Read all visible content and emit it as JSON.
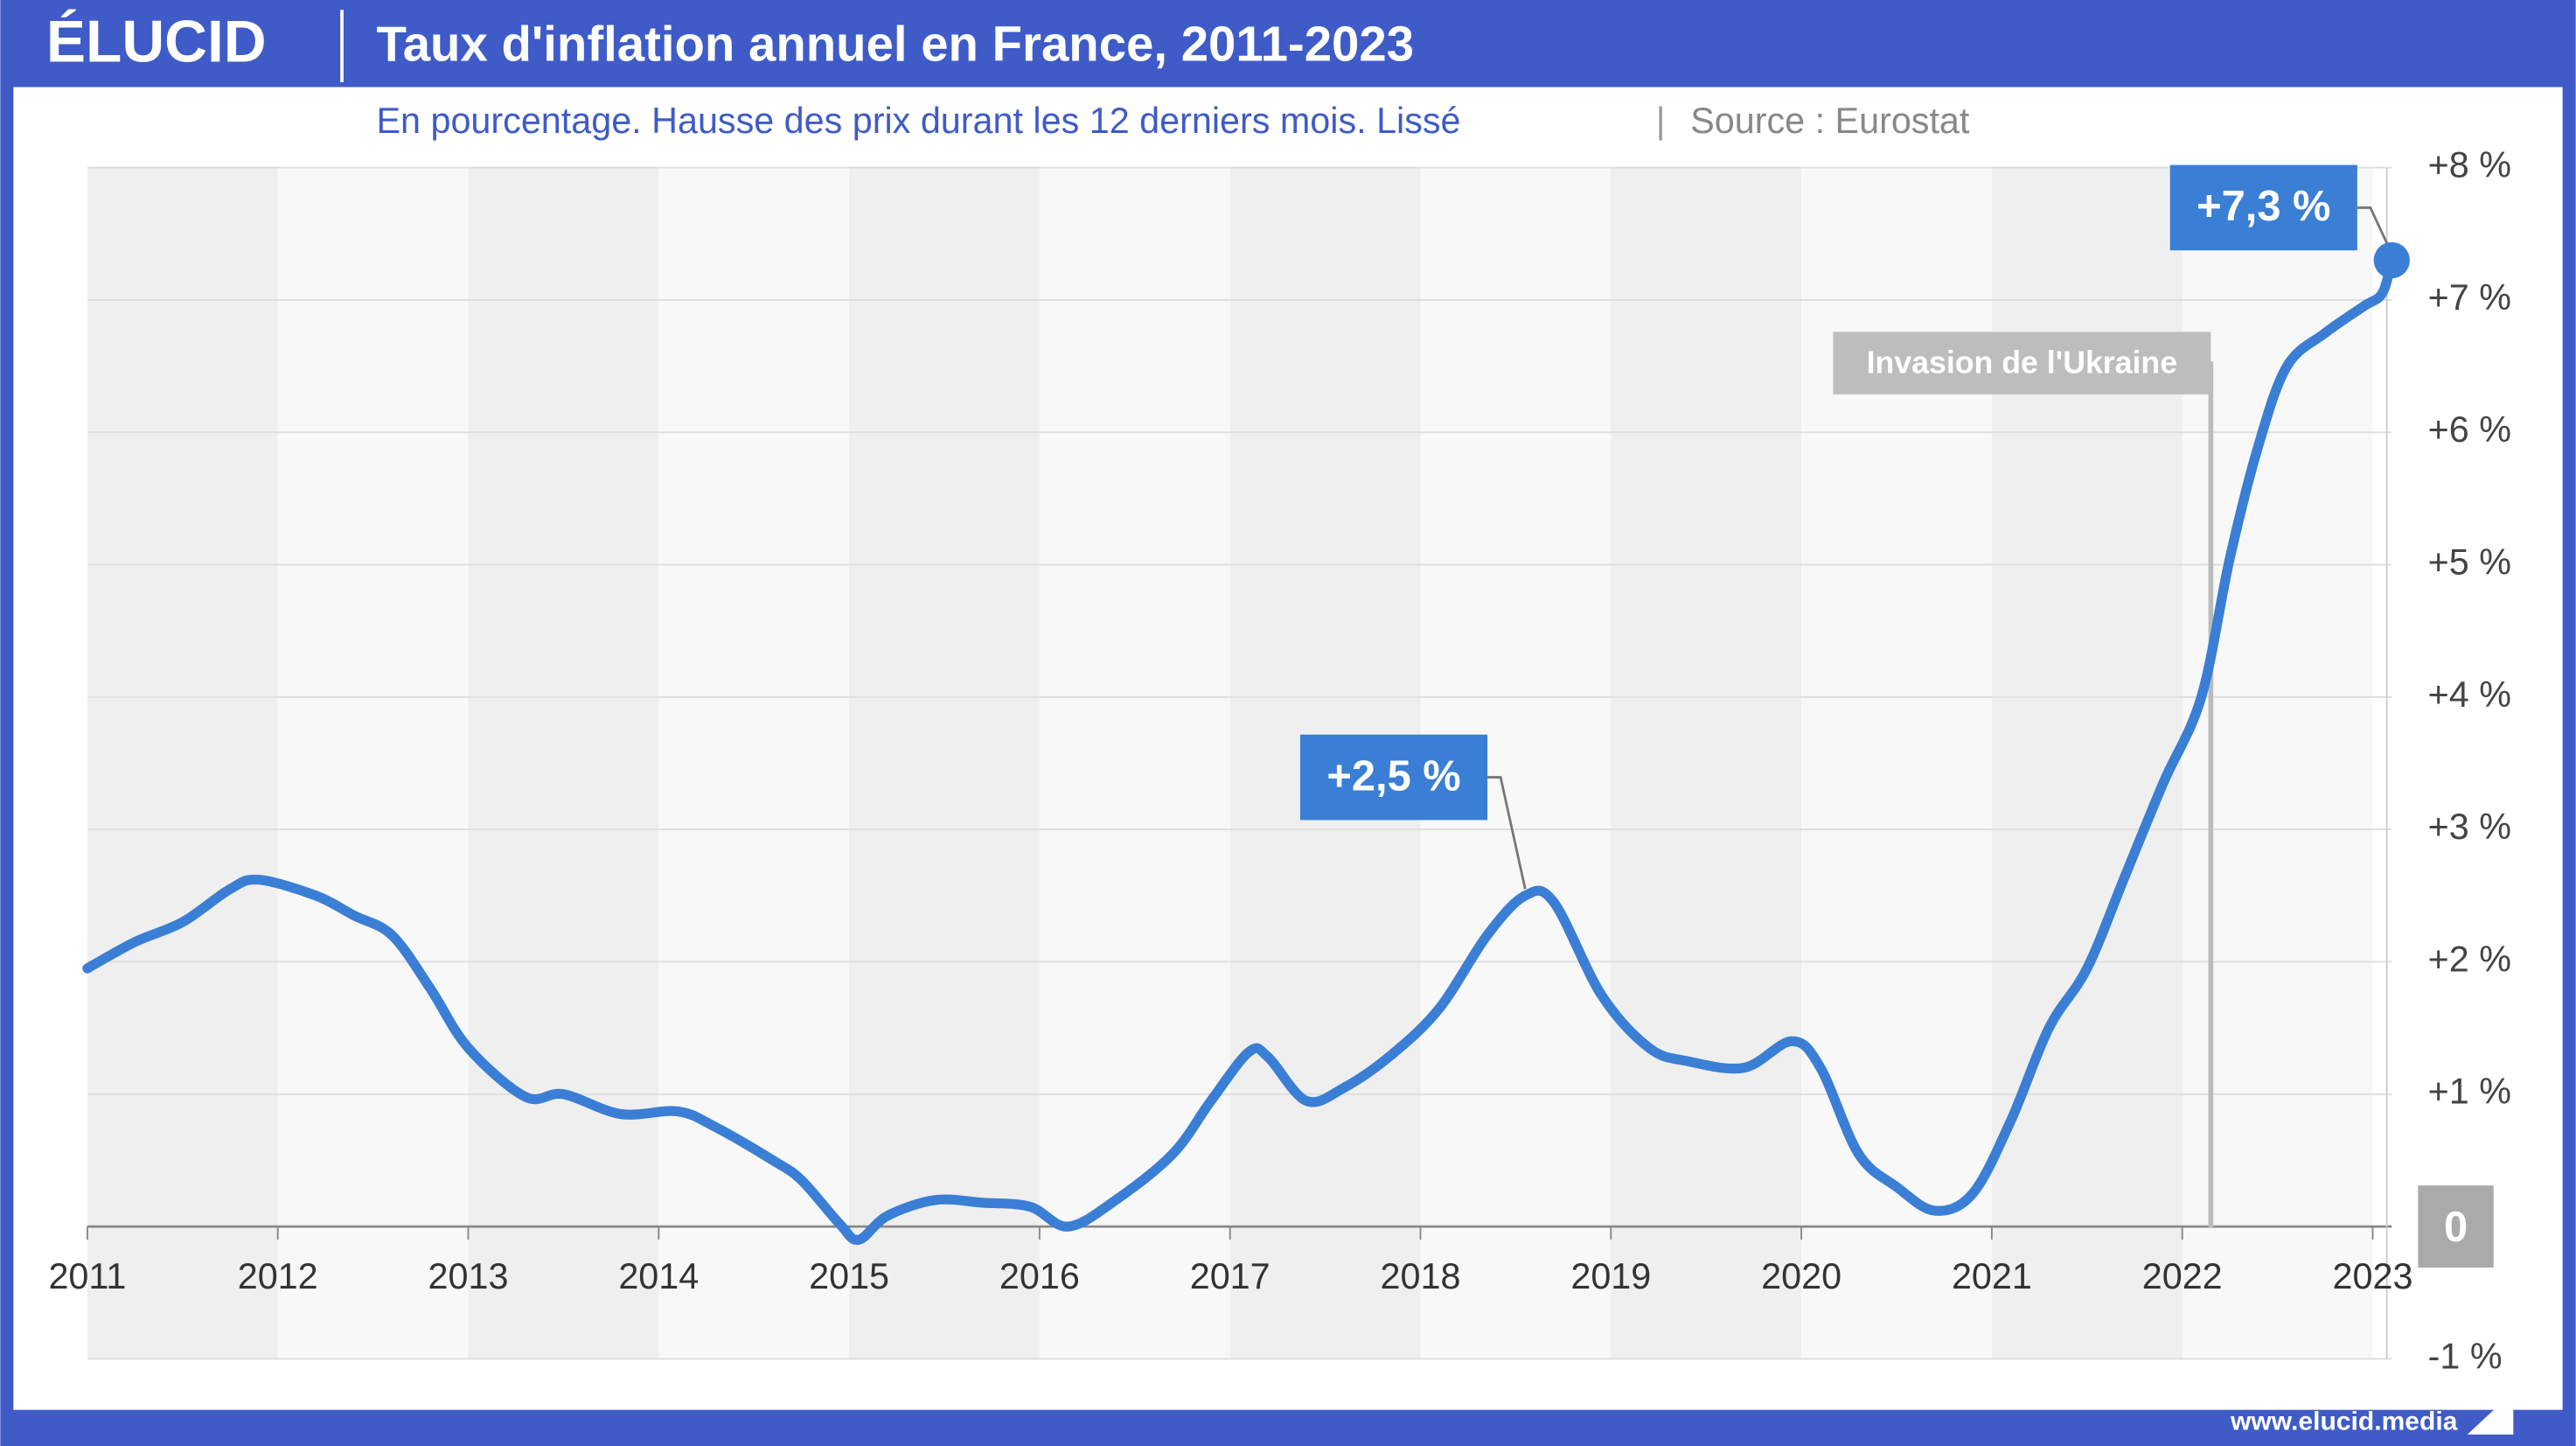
{
  "header": {
    "logo": "ÉLUCID",
    "footer": "www.elucid.media"
  },
  "chart_data": {
    "type": "line",
    "title": "Taux d'inflation annuel en France, 2011-2023",
    "subtitle": "En pourcentage. Hausse des prix durant les 12 derniers mois. Lissé",
    "source": "Source : Eurostat",
    "x": [
      2011,
      2011.25,
      2011.5,
      2011.75,
      2011.9,
      2012.2,
      2012.4,
      2012.6,
      2012.8,
      2013.0,
      2013.3,
      2013.5,
      2013.8,
      2014.1,
      2014.3,
      2014.6,
      2014.75,
      2014.95,
      2015.05,
      2015.2,
      2015.45,
      2015.7,
      2015.95,
      2016.15,
      2016.4,
      2016.7,
      2016.9,
      2017.1,
      2017.2,
      2017.4,
      2017.6,
      2017.85,
      2018.1,
      2018.35,
      2018.55,
      2018.7,
      2018.95,
      2019.2,
      2019.4,
      2019.7,
      2019.95,
      2020.1,
      2020.3,
      2020.5,
      2020.7,
      2020.9,
      2021.1,
      2021.3,
      2021.5,
      2021.7,
      2021.9,
      2022.1,
      2022.25,
      2022.4,
      2022.55,
      2022.75,
      2022.95,
      2023.05,
      2023.1
    ],
    "series": [
      {
        "name": "Inflation",
        "color": "#3a7fd5",
        "values": [
          1.95,
          2.15,
          2.3,
          2.55,
          2.62,
          2.5,
          2.35,
          2.2,
          1.8,
          1.35,
          0.98,
          1.0,
          0.85,
          0.87,
          0.75,
          0.5,
          0.35,
          0.02,
          -0.1,
          0.08,
          0.2,
          0.18,
          0.15,
          0.0,
          0.2,
          0.55,
          0.95,
          1.32,
          1.28,
          0.95,
          1.05,
          1.3,
          1.65,
          2.2,
          2.5,
          2.45,
          1.75,
          1.35,
          1.25,
          1.2,
          1.4,
          1.2,
          0.55,
          0.3,
          0.12,
          0.25,
          0.8,
          1.5,
          1.95,
          2.65,
          3.35,
          4.0,
          5.05,
          5.9,
          6.5,
          6.75,
          6.95,
          7.05,
          7.3
        ],
        "value_labels": [
          null,
          null,
          null,
          null,
          null,
          null,
          null,
          null,
          null,
          null,
          null,
          null,
          null,
          null,
          null,
          null,
          null,
          null,
          null,
          null,
          null,
          null,
          null,
          null,
          null,
          null,
          null,
          null,
          null,
          null,
          null,
          null,
          null,
          null,
          "+2,5 %",
          null,
          null,
          null,
          null,
          null,
          null,
          null,
          null,
          null,
          null,
          null,
          null,
          null,
          null,
          null,
          null,
          null,
          null,
          null,
          null,
          null,
          null,
          null,
          "+7,3 %"
        ]
      }
    ],
    "annotations": [
      {
        "label": "Invasion de l'Ukraine",
        "x": 2022.15
      }
    ],
    "xlim": [
      2011,
      2023.1
    ],
    "xticks": [
      2011,
      2012,
      2013,
      2014,
      2015,
      2016,
      2017,
      2018,
      2019,
      2020,
      2021,
      2022,
      2023
    ],
    "ylim": [
      -1,
      8
    ],
    "yticks": [
      {
        "value": -1,
        "label": "-1 %"
      },
      0,
      {
        "value": 1,
        "label": "+1 %"
      },
      {
        "value": 2,
        "label": "+2 %"
      },
      {
        "value": 3,
        "label": "+3 %"
      },
      {
        "value": 4,
        "label": "+4 %"
      },
      {
        "value": 5,
        "label": "+5 %"
      },
      {
        "value": 6,
        "label": "+6 %"
      },
      {
        "value": 7,
        "label": "+7 %"
      },
      {
        "value": 8,
        "label": "+8 %"
      }
    ],
    "grid": true
  }
}
